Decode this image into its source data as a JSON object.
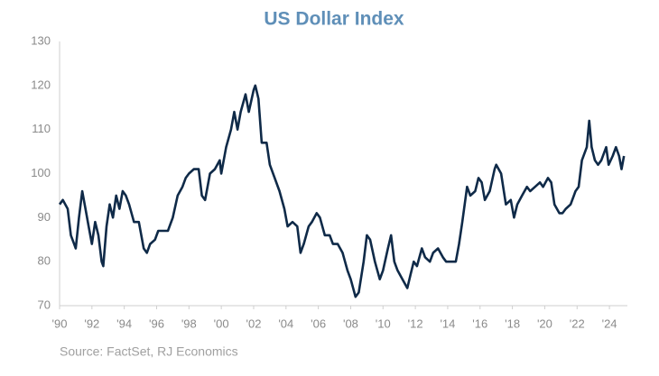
{
  "chart_data": {
    "type": "line",
    "title": "US Dollar Index",
    "source": "Source: FactSet, RJ Economics",
    "color": "#0f2a48",
    "x": [
      1990.0,
      1990.2,
      1990.5,
      1990.7,
      1990.9,
      1991.0,
      1991.2,
      1991.4,
      1991.6,
      1991.8,
      1992.0,
      1992.2,
      1992.4,
      1992.6,
      1992.7,
      1992.9,
      1993.1,
      1993.3,
      1993.5,
      1993.7,
      1993.9,
      1994.1,
      1994.3,
      1994.6,
      1994.9,
      1995.2,
      1995.4,
      1995.6,
      1995.9,
      1996.1,
      1996.4,
      1996.7,
      1997.0,
      1997.3,
      1997.6,
      1997.8,
      1998.0,
      1998.3,
      1998.6,
      1998.8,
      1999.0,
      1999.3,
      1999.6,
      1999.9,
      2000.0,
      2000.3,
      2000.6,
      2000.8,
      2001.0,
      2001.2,
      2001.5,
      2001.7,
      2002.0,
      2002.1,
      2002.3,
      2002.5,
      2002.8,
      2003.0,
      2003.3,
      2003.6,
      2003.9,
      2004.1,
      2004.4,
      2004.7,
      2004.9,
      2005.1,
      2005.4,
      2005.6,
      2005.9,
      2006.1,
      2006.4,
      2006.7,
      2006.9,
      2007.2,
      2007.5,
      2007.8,
      2008.0,
      2008.3,
      2008.5,
      2008.8,
      2009.0,
      2009.2,
      2009.5,
      2009.8,
      2010.0,
      2010.3,
      2010.5,
      2010.7,
      2010.9,
      2011.2,
      2011.5,
      2011.7,
      2011.9,
      2012.1,
      2012.4,
      2012.6,
      2012.9,
      2013.1,
      2013.4,
      2013.7,
      2013.9,
      2014.2,
      2014.5,
      2014.7,
      2014.9,
      2015.2,
      2015.4,
      2015.7,
      2015.9,
      2016.1,
      2016.3,
      2016.6,
      2016.9,
      2017.0,
      2017.3,
      2017.6,
      2017.9,
      2018.1,
      2018.3,
      2018.6,
      2018.9,
      2019.1,
      2019.4,
      2019.7,
      2019.9,
      2020.2,
      2020.4,
      2020.6,
      2020.9,
      2021.1,
      2021.3,
      2021.6,
      2021.9,
      2022.1,
      2022.3,
      2022.6,
      2022.75,
      2022.9,
      2023.1,
      2023.3,
      2023.5,
      2023.8,
      2023.95,
      2024.2,
      2024.4,
      2024.6,
      2024.75,
      2024.9
    ],
    "values": [
      93,
      94,
      92,
      86,
      84,
      83,
      90,
      96,
      92,
      88,
      84,
      89,
      86,
      80,
      79,
      88,
      93,
      90,
      95,
      92,
      96,
      95,
      93,
      89,
      89,
      83,
      82,
      84,
      85,
      87,
      87,
      87,
      90,
      95,
      97,
      99,
      100,
      101,
      101,
      95,
      94,
      100,
      101,
      103,
      100,
      106,
      110,
      114,
      110,
      114,
      118,
      114,
      119,
      120,
      117,
      107,
      107,
      102,
      99,
      96,
      92,
      88,
      89,
      88,
      82,
      84,
      88,
      89,
      91,
      90,
      86,
      86,
      84,
      84,
      82,
      78,
      76,
      72,
      73,
      80,
      86,
      85,
      80,
      76,
      78,
      83,
      86,
      80,
      78,
      76,
      74,
      77,
      80,
      79,
      83,
      81,
      80,
      82,
      83,
      81,
      80,
      80,
      80,
      84,
      89,
      97,
      95,
      96,
      99,
      98,
      94,
      96,
      101,
      102,
      100,
      93,
      94,
      90,
      93,
      95,
      97,
      96,
      97,
      98,
      97,
      99,
      98,
      93,
      91,
      91,
      92,
      93,
      96,
      97,
      103,
      106,
      112,
      106,
      103,
      102,
      103,
      106,
      102,
      104,
      106,
      104,
      101,
      104
    ],
    "xlim": [
      1990,
      2025
    ],
    "xticks": [
      {
        "value": 1990,
        "label": "'90"
      },
      {
        "value": 1992,
        "label": "'92"
      },
      {
        "value": 1994,
        "label": "'94"
      },
      {
        "value": 1996,
        "label": "'96"
      },
      {
        "value": 1998,
        "label": "'98"
      },
      {
        "value": 2000,
        "label": "'00"
      },
      {
        "value": 2002,
        "label": "'02"
      },
      {
        "value": 2004,
        "label": "'04"
      },
      {
        "value": 2006,
        "label": "'06"
      },
      {
        "value": 2008,
        "label": "'08"
      },
      {
        "value": 2010,
        "label": "'10"
      },
      {
        "value": 2012,
        "label": "'12"
      },
      {
        "value": 2014,
        "label": "'14"
      },
      {
        "value": 2016,
        "label": "'16"
      },
      {
        "value": 2018,
        "label": "'18"
      },
      {
        "value": 2020,
        "label": "'20"
      },
      {
        "value": 2022,
        "label": "'22"
      },
      {
        "value": 2024,
        "label": "'24"
      }
    ],
    "ylim": [
      70,
      130
    ],
    "yticks": [
      70,
      80,
      90,
      100,
      110,
      120,
      130
    ],
    "grid": false
  }
}
